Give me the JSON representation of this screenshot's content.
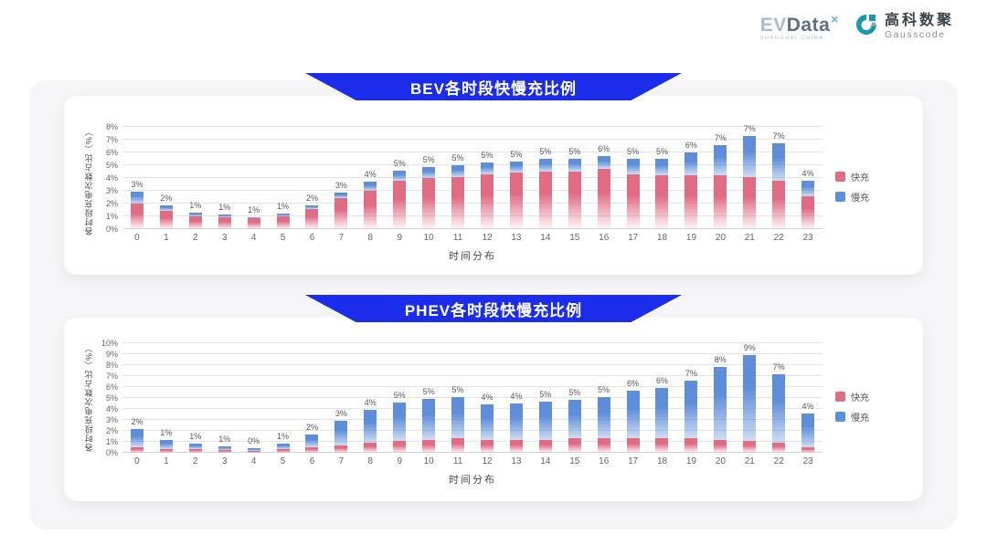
{
  "header": {
    "evdata": {
      "ev": "EV",
      "data": "Data",
      "sup": "×",
      "tagline_left": "SHANGHAI",
      "tagline_right": "CHINA"
    },
    "gausscode": {
      "cn": "高科数聚",
      "en": "Gausscode",
      "icon_color": "#1899ad"
    }
  },
  "colors": {
    "banner_blue": "#1b2ceb",
    "fast_pink": "#e06c84",
    "slow_blue": "#5e8ed9",
    "container_grey": "#f5f5f7"
  },
  "chart_data": [
    {
      "type": "bar",
      "stacked": true,
      "title": "BEV各时段快慢充比例",
      "xlabel": "时间分布",
      "ylabel": "各时段充电次数占比（%）",
      "ylim": [
        0,
        8
      ],
      "ytick_step": 1,
      "ytick_suffix": "%",
      "grid": true,
      "legend_position": "right",
      "categories": [
        "0",
        "1",
        "2",
        "3",
        "4",
        "5",
        "6",
        "7",
        "8",
        "9",
        "10",
        "11",
        "12",
        "13",
        "14",
        "15",
        "16",
        "17",
        "18",
        "19",
        "20",
        "21",
        "22",
        "23"
      ],
      "series": [
        {
          "name": "快充",
          "color": "#e06c84",
          "values": [
            2.0,
            1.4,
            1.0,
            0.9,
            0.85,
            1.0,
            1.55,
            2.4,
            3.0,
            3.8,
            4.0,
            4.1,
            4.3,
            4.4,
            4.5,
            4.5,
            4.7,
            4.3,
            4.2,
            4.2,
            4.2,
            4.1,
            3.8,
            2.6
          ]
        },
        {
          "name": "慢充",
          "color": "#5e8ed9",
          "values": [
            0.95,
            0.45,
            0.3,
            0.25,
            0.1,
            0.2,
            0.3,
            0.45,
            0.7,
            0.8,
            0.85,
            0.9,
            0.9,
            0.9,
            1.0,
            1.0,
            1.0,
            1.2,
            1.3,
            1.8,
            2.4,
            3.2,
            2.9,
            1.2
          ]
        }
      ],
      "total_labels": [
        "3%",
        "2%",
        "1%",
        "1%",
        "1%",
        "1%",
        "2%",
        "3%",
        "4%",
        "5%",
        "5%",
        "5%",
        "5%",
        "5%",
        "5%",
        "5%",
        "6%",
        "5%",
        "5%",
        "6%",
        "7%",
        "7%",
        "7%",
        "4%"
      ]
    },
    {
      "type": "bar",
      "stacked": true,
      "title": "PHEV各时段快慢充比例",
      "xlabel": "时间分布",
      "ylabel": "各时段充电次数占比（%）",
      "ylim": [
        0,
        10
      ],
      "ytick_step": 1,
      "ytick_suffix": "%",
      "grid": true,
      "legend_position": "right",
      "categories": [
        "0",
        "1",
        "2",
        "3",
        "4",
        "5",
        "6",
        "7",
        "8",
        "9",
        "10",
        "11",
        "12",
        "13",
        "14",
        "15",
        "16",
        "17",
        "18",
        "19",
        "20",
        "21",
        "22",
        "23"
      ],
      "series": [
        {
          "name": "快充",
          "color": "#e06c84",
          "values": [
            0.5,
            0.35,
            0.3,
            0.25,
            0.2,
            0.3,
            0.5,
            0.65,
            0.9,
            1.1,
            1.2,
            1.3,
            1.2,
            1.2,
            1.2,
            1.3,
            1.3,
            1.3,
            1.3,
            1.3,
            1.2,
            1.1,
            0.9,
            0.5
          ]
        },
        {
          "name": "慢充",
          "color": "#5e8ed9",
          "values": [
            1.7,
            0.85,
            0.5,
            0.35,
            0.25,
            0.55,
            1.2,
            2.25,
            3.0,
            3.5,
            3.7,
            3.8,
            3.2,
            3.3,
            3.5,
            3.5,
            3.8,
            4.4,
            4.6,
            5.3,
            6.6,
            7.8,
            6.3,
            3.1
          ]
        }
      ],
      "total_labels": [
        "2%",
        "1%",
        "1%",
        "1%",
        "0%",
        "1%",
        "2%",
        "3%",
        "4%",
        "5%",
        "5%",
        "5%",
        "4%",
        "4%",
        "5%",
        "5%",
        "5%",
        "6%",
        "6%",
        "7%",
        "8%",
        "9%",
        "7%",
        "4%"
      ]
    }
  ]
}
